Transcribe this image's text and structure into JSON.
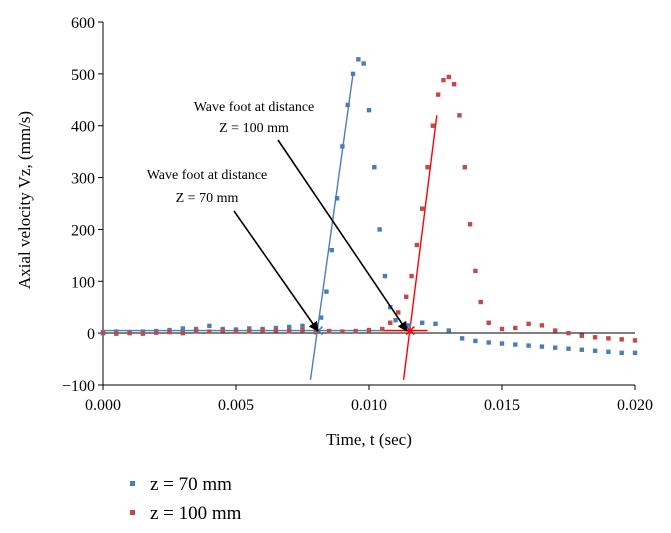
{
  "chart_data": {
    "type": "scatter",
    "xlabel": "Time, t (sec)",
    "ylabel": "Axial velocity Vz, (mm/s)",
    "xlim": [
      0.0,
      0.02
    ],
    "ylim": [
      -100,
      600
    ],
    "xticks": [
      "0.000",
      "0.005",
      "0.010",
      "0.015",
      "0.020"
    ],
    "yticks": [
      "−100",
      "0",
      "100",
      "200",
      "300",
      "400",
      "500",
      "600"
    ],
    "grid": false,
    "legend_position": "bottom-left",
    "series": [
      {
        "name": "z = 70 mm",
        "color": "#4a7ebb",
        "points": [
          [
            0.0,
            2
          ],
          [
            0.0005,
            3
          ],
          [
            0.001,
            2
          ],
          [
            0.0015,
            3
          ],
          [
            0.002,
            4
          ],
          [
            0.0025,
            6
          ],
          [
            0.003,
            9
          ],
          [
            0.0035,
            8
          ],
          [
            0.004,
            14
          ],
          [
            0.0045,
            8
          ],
          [
            0.005,
            7
          ],
          [
            0.0055,
            9
          ],
          [
            0.006,
            8
          ],
          [
            0.0065,
            10
          ],
          [
            0.007,
            12
          ],
          [
            0.0075,
            14
          ],
          [
            0.008,
            12
          ],
          [
            0.0082,
            30
          ],
          [
            0.0084,
            80
          ],
          [
            0.0086,
            160
          ],
          [
            0.0088,
            260
          ],
          [
            0.009,
            360
          ],
          [
            0.0092,
            440
          ],
          [
            0.0094,
            500
          ],
          [
            0.0096,
            528
          ],
          [
            0.0098,
            520
          ],
          [
            0.01,
            430
          ],
          [
            0.0102,
            320
          ],
          [
            0.0104,
            200
          ],
          [
            0.0106,
            110
          ],
          [
            0.0108,
            50
          ],
          [
            0.011,
            25
          ],
          [
            0.0115,
            15
          ],
          [
            0.012,
            20
          ],
          [
            0.0125,
            18
          ],
          [
            0.013,
            5
          ],
          [
            0.0135,
            -10
          ],
          [
            0.014,
            -15
          ],
          [
            0.0145,
            -18
          ],
          [
            0.015,
            -20
          ],
          [
            0.0155,
            -22
          ],
          [
            0.016,
            -24
          ],
          [
            0.0165,
            -26
          ],
          [
            0.017,
            -28
          ],
          [
            0.0175,
            -30
          ],
          [
            0.018,
            -32
          ],
          [
            0.0185,
            -34
          ],
          [
            0.019,
            -36
          ],
          [
            0.0195,
            -38
          ],
          [
            0.02,
            -38
          ]
        ]
      },
      {
        "name": "z = 100 mm",
        "color": "#be4b48",
        "points": [
          [
            0.0,
            0
          ],
          [
            0.0005,
            -1
          ],
          [
            0.001,
            0
          ],
          [
            0.0015,
            -1
          ],
          [
            0.002,
            1
          ],
          [
            0.0025,
            2
          ],
          [
            0.003,
            0
          ],
          [
            0.0035,
            4
          ],
          [
            0.004,
            3
          ],
          [
            0.0045,
            5
          ],
          [
            0.005,
            3
          ],
          [
            0.0055,
            4
          ],
          [
            0.006,
            6
          ],
          [
            0.0065,
            5
          ],
          [
            0.007,
            4
          ],
          [
            0.0075,
            6
          ],
          [
            0.008,
            3
          ],
          [
            0.0085,
            4
          ],
          [
            0.009,
            3
          ],
          [
            0.0095,
            4
          ],
          [
            0.01,
            6
          ],
          [
            0.0105,
            8
          ],
          [
            0.0108,
            20
          ],
          [
            0.0111,
            40
          ],
          [
            0.0114,
            70
          ],
          [
            0.0116,
            110
          ],
          [
            0.0118,
            170
          ],
          [
            0.012,
            240
          ],
          [
            0.0122,
            320
          ],
          [
            0.0124,
            400
          ],
          [
            0.0126,
            460
          ],
          [
            0.0128,
            488
          ],
          [
            0.013,
            494
          ],
          [
            0.0132,
            480
          ],
          [
            0.0134,
            420
          ],
          [
            0.0136,
            320
          ],
          [
            0.0138,
            210
          ],
          [
            0.014,
            120
          ],
          [
            0.0142,
            60
          ],
          [
            0.0145,
            20
          ],
          [
            0.015,
            8
          ],
          [
            0.0155,
            10
          ],
          [
            0.016,
            18
          ],
          [
            0.0165,
            15
          ],
          [
            0.017,
            5
          ],
          [
            0.0175,
            0
          ],
          [
            0.018,
            -5
          ],
          [
            0.0185,
            -8
          ],
          [
            0.019,
            -10
          ],
          [
            0.0195,
            -12
          ],
          [
            0.02,
            -14
          ]
        ]
      }
    ],
    "fit_lines": [
      {
        "color": "#4a7ebb",
        "from": [
          0.0078,
          -90
        ],
        "to": [
          0.0094,
          500
        ]
      },
      {
        "color": "#4a7ebb",
        "from": [
          0.0,
          5
        ],
        "to": [
          0.0122,
          5
        ]
      },
      {
        "color": "#ff0000",
        "from": [
          0.0113,
          -90
        ],
        "to": [
          0.01255,
          420
        ]
      },
      {
        "color": "#ff0000",
        "from": [
          0.0105,
          5
        ],
        "to": [
          0.0122,
          5
        ]
      }
    ],
    "wave_foot_marks": [
      {
        "x": 0.0081,
        "y": 5,
        "color": "#4a7ebb"
      },
      {
        "x": 0.01155,
        "y": 5,
        "color": "#ff0000"
      }
    ],
    "annotations": [
      {
        "line1": "Wave foot at distance",
        "line2": "Z = 100 mm",
        "target": [
          0.01155,
          5
        ]
      },
      {
        "line1": "Wave foot at distance",
        "line2": "Z = 70 mm",
        "target": [
          0.0081,
          5
        ]
      }
    ]
  }
}
